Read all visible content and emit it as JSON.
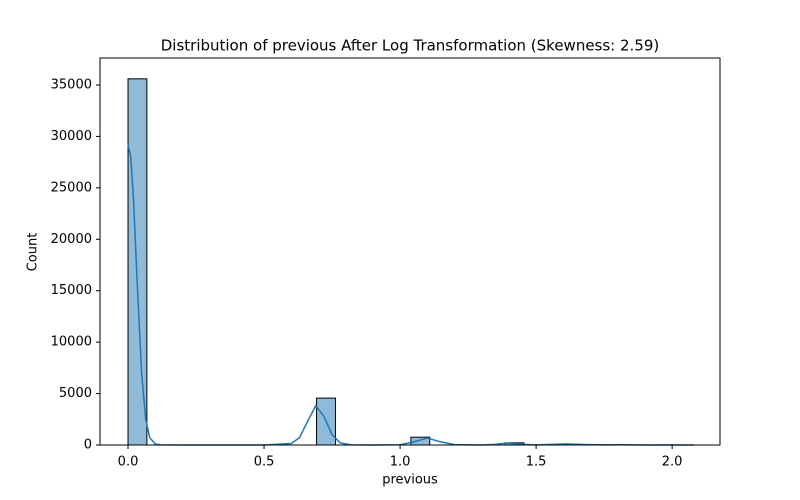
{
  "chart_data": {
    "type": "histogram",
    "title": "Distribution of previous After Log Transformation (Skewness: 2.59)",
    "x_label": "previous",
    "y_label": "Count",
    "bins": [
      0,
      0.0693,
      0.1386,
      0.2079,
      0.2773,
      0.3466,
      0.4159,
      0.4852,
      0.5545,
      0.6238,
      0.6931,
      0.7625,
      0.8318,
      0.9011,
      0.9704,
      1.0397,
      1.109,
      1.1783,
      1.2477,
      1.317,
      1.3863,
      1.4556,
      1.5249,
      1.5942,
      1.6635,
      1.7329,
      1.8022,
      1.8715,
      1.9408,
      2.0101,
      2.0794
    ],
    "values": [
      35600,
      0,
      0,
      0,
      0,
      0,
      0,
      0,
      0,
      0,
      4560,
      0,
      0,
      0,
      0,
      760,
      0,
      0,
      0,
      0,
      210,
      0,
      0,
      70,
      0,
      20,
      0,
      0,
      5,
      2
    ],
    "color": "#1f77b4",
    "kde": {
      "x": [
        0,
        0.01,
        0.02,
        0.035,
        0.05,
        0.065,
        0.08,
        0.1,
        0.12,
        0.2,
        0.5,
        0.6,
        0.63,
        0.66,
        0.69,
        0.72,
        0.75,
        0.78,
        0.82,
        0.9,
        1.0,
        1.05,
        1.1,
        1.15,
        1.2,
        1.3,
        1.35,
        1.39,
        1.45,
        1.5,
        1.56,
        1.61,
        1.67,
        1.75,
        1.8,
        1.9,
        2.0,
        2.08
      ],
      "values": [
        29200,
        28000,
        24000,
        15000,
        7000,
        2500,
        700,
        100,
        10,
        0,
        0,
        150,
        700,
        2300,
        3800,
        2800,
        1000,
        200,
        10,
        0,
        30,
        300,
        680,
        300,
        40,
        5,
        60,
        180,
        60,
        10,
        60,
        110,
        50,
        10,
        20,
        5,
        0,
        0
      ]
    },
    "xlim": [
      -0.103,
      2.176
    ],
    "ylim": [
      0,
      37625
    ],
    "xticks": [
      {
        "value": 0,
        "label": "0.0"
      },
      {
        "value": 0.5,
        "label": "0.5"
      },
      {
        "value": 1,
        "label": "1.0"
      },
      {
        "value": 1.5,
        "label": "1.5"
      },
      {
        "value": 2,
        "label": "2.0"
      }
    ],
    "yticks": [
      0,
      5000,
      10000,
      15000,
      20000,
      25000,
      30000,
      35000
    ],
    "grid": false
  }
}
